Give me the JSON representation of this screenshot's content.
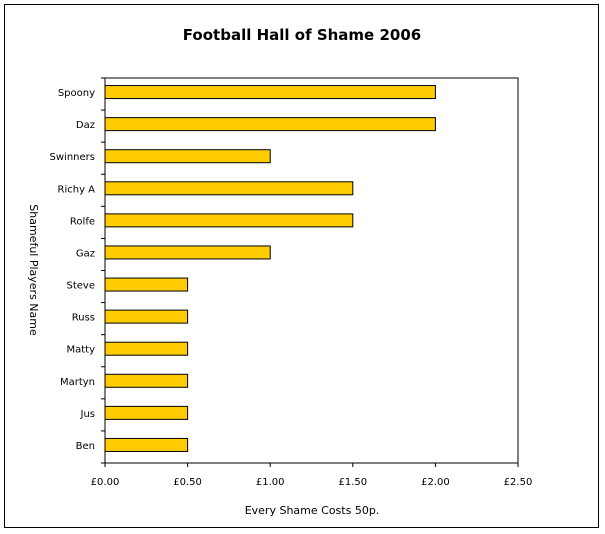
{
  "chart_data": {
    "type": "bar",
    "orientation": "horizontal",
    "title": "Football Hall of Shame 2006",
    "xlabel": "Every Shame Costs 50p.",
    "ylabel": "Shameful Players Name",
    "categories": [
      "Spoony",
      "Daz",
      "Swinners",
      "Richy A",
      "Rolfe",
      "Gaz",
      "Steve",
      "Russ",
      "Matty",
      "Martyn",
      "Jus",
      "Ben"
    ],
    "values": [
      2.0,
      2.0,
      1.0,
      1.5,
      1.5,
      1.0,
      0.5,
      0.5,
      0.5,
      0.5,
      0.5,
      0.5
    ],
    "xlim": [
      0,
      2.5
    ],
    "x_ticks": [
      0,
      0.5,
      1.0,
      1.5,
      2.0,
      2.5
    ],
    "x_tick_labels": [
      "£0.00",
      "£0.50",
      "£1.00",
      "£1.50",
      "£2.00",
      "£2.50"
    ],
    "grid": false,
    "legend": "none",
    "bar_color": "#ffcc00",
    "bar_edge_color": "#000000"
  }
}
